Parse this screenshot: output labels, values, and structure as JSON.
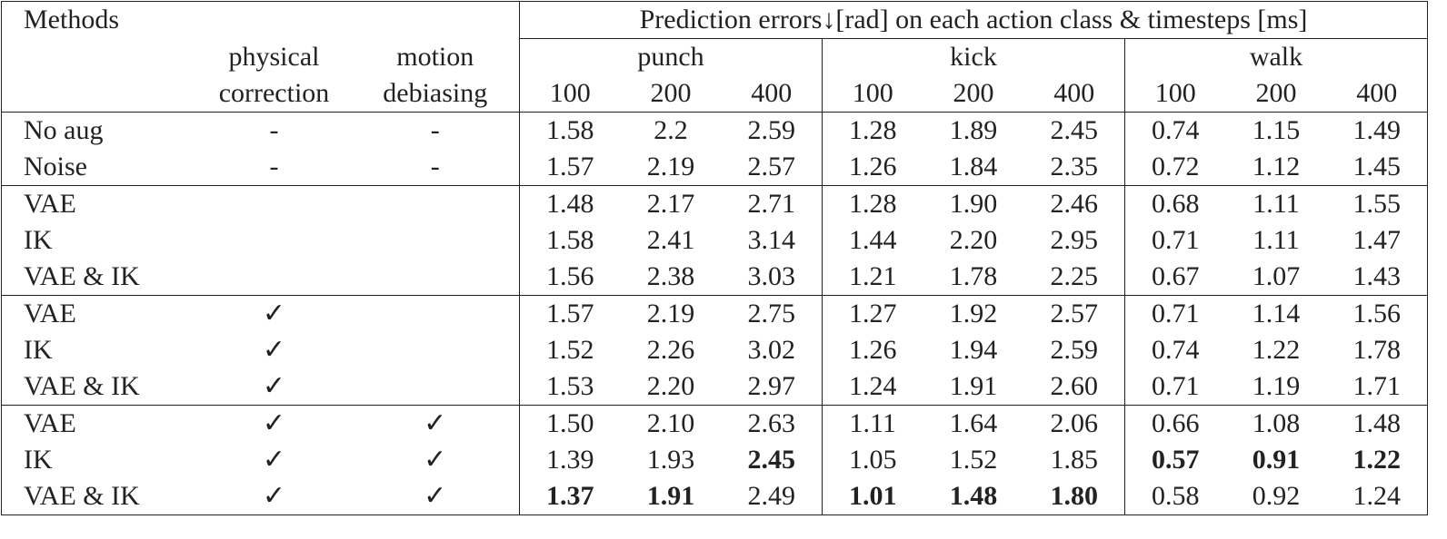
{
  "table": {
    "header": {
      "methods": "Methods",
      "physical": [
        "physical",
        "correction"
      ],
      "motion": [
        "motion",
        "debiasing"
      ],
      "errors": "Prediction errors↓[rad] on each action class & timesteps [ms]",
      "classes": [
        "punch",
        "kick",
        "walk"
      ],
      "timesteps": [
        "100",
        "200",
        "400"
      ]
    },
    "groups": [
      [
        {
          "method": "No aug",
          "physical": "-",
          "motion": "-",
          "values": [
            "1.58",
            "2.2",
            "2.59",
            "1.28",
            "1.89",
            "2.45",
            "0.74",
            "1.15",
            "1.49"
          ]
        },
        {
          "method": "Noise",
          "physical": "-",
          "motion": "-",
          "values": [
            "1.57",
            "2.19",
            "2.57",
            "1.26",
            "1.84",
            "2.35",
            "0.72",
            "1.12",
            "1.45"
          ]
        }
      ],
      [
        {
          "method": "VAE",
          "values": [
            "1.48",
            "2.17",
            "2.71",
            "1.28",
            "1.90",
            "2.46",
            "0.68",
            "1.11",
            "1.55"
          ]
        },
        {
          "method": "IK",
          "values": [
            "1.58",
            "2.41",
            "3.14",
            "1.44",
            "2.20",
            "2.95",
            "0.71",
            "1.11",
            "1.47"
          ]
        },
        {
          "method": "VAE & IK",
          "values": [
            "1.56",
            "2.38",
            "3.03",
            "1.21",
            "1.78",
            "2.25",
            "0.67",
            "1.07",
            "1.43"
          ]
        }
      ],
      [
        {
          "method": "VAE",
          "physical": "✓",
          "values": [
            "1.57",
            "2.19",
            "2.75",
            "1.27",
            "1.92",
            "2.57",
            "0.71",
            "1.14",
            "1.56"
          ]
        },
        {
          "method": "IK",
          "physical": "✓",
          "values": [
            "1.52",
            "2.26",
            "3.02",
            "1.26",
            "1.94",
            "2.59",
            "0.74",
            "1.22",
            "1.78"
          ]
        },
        {
          "method": "VAE & IK",
          "physical": "✓",
          "values": [
            "1.53",
            "2.20",
            "2.97",
            "1.24",
            "1.91",
            "2.60",
            "0.71",
            "1.19",
            "1.71"
          ]
        }
      ],
      [
        {
          "method": "VAE",
          "physical": "✓",
          "motion": "✓",
          "values": [
            "1.50",
            "2.10",
            "2.63",
            "1.11",
            "1.64",
            "2.06",
            "0.66",
            "1.08",
            "1.48"
          ]
        },
        {
          "method": "IK",
          "physical": "✓",
          "motion": "✓",
          "values": [
            "1.39",
            "1.93",
            "2.45",
            "1.05",
            "1.52",
            "1.85",
            "0.57",
            "0.91",
            "1.22"
          ],
          "bold": [
            2,
            6,
            7,
            8
          ]
        },
        {
          "method": "VAE & IK",
          "physical": "✓",
          "motion": "✓",
          "values": [
            "1.37",
            "1.91",
            "2.49",
            "1.01",
            "1.48",
            "1.80",
            "0.58",
            "0.92",
            "1.24"
          ],
          "bold": [
            0,
            1,
            3,
            4,
            5
          ]
        }
      ]
    ]
  }
}
